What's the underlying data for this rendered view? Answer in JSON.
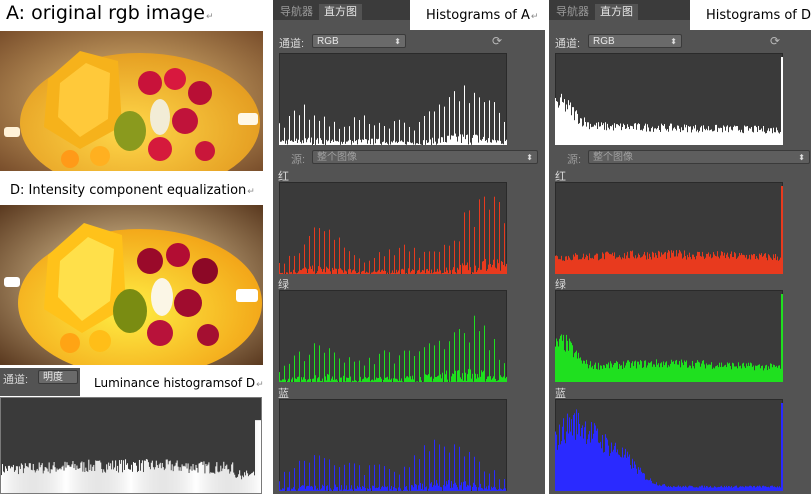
{
  "captions": {
    "a": "A: original rgb image",
    "d": "D: Intensity component equalization",
    "hist_a": "Histograms of A",
    "hist_d": "Histograms of D",
    "lum_d": "Luminance histogramsof D",
    "return_mark": "↵"
  },
  "panel": {
    "tab_navigator": "导航器",
    "tab_histogram": "直方图",
    "channel_label": "通道:",
    "channel_value": "RGB",
    "source_label": "源:",
    "source_value": "整个图像",
    "red_label": "红",
    "green_label": "绿",
    "blue_label": "蓝",
    "refresh_icon": "refresh-icon",
    "dropdown_icon": "updown-arrow-icon"
  },
  "lum_panel": {
    "channel_label": "通道:",
    "channel_value": "明度"
  },
  "colors": {
    "panel_bg": "#535353",
    "hist_bg": "#3a3a3a",
    "red": "#e83a1e",
    "green": "#1fe01f",
    "blue": "#2a2aff",
    "white": "#ffffff"
  }
}
